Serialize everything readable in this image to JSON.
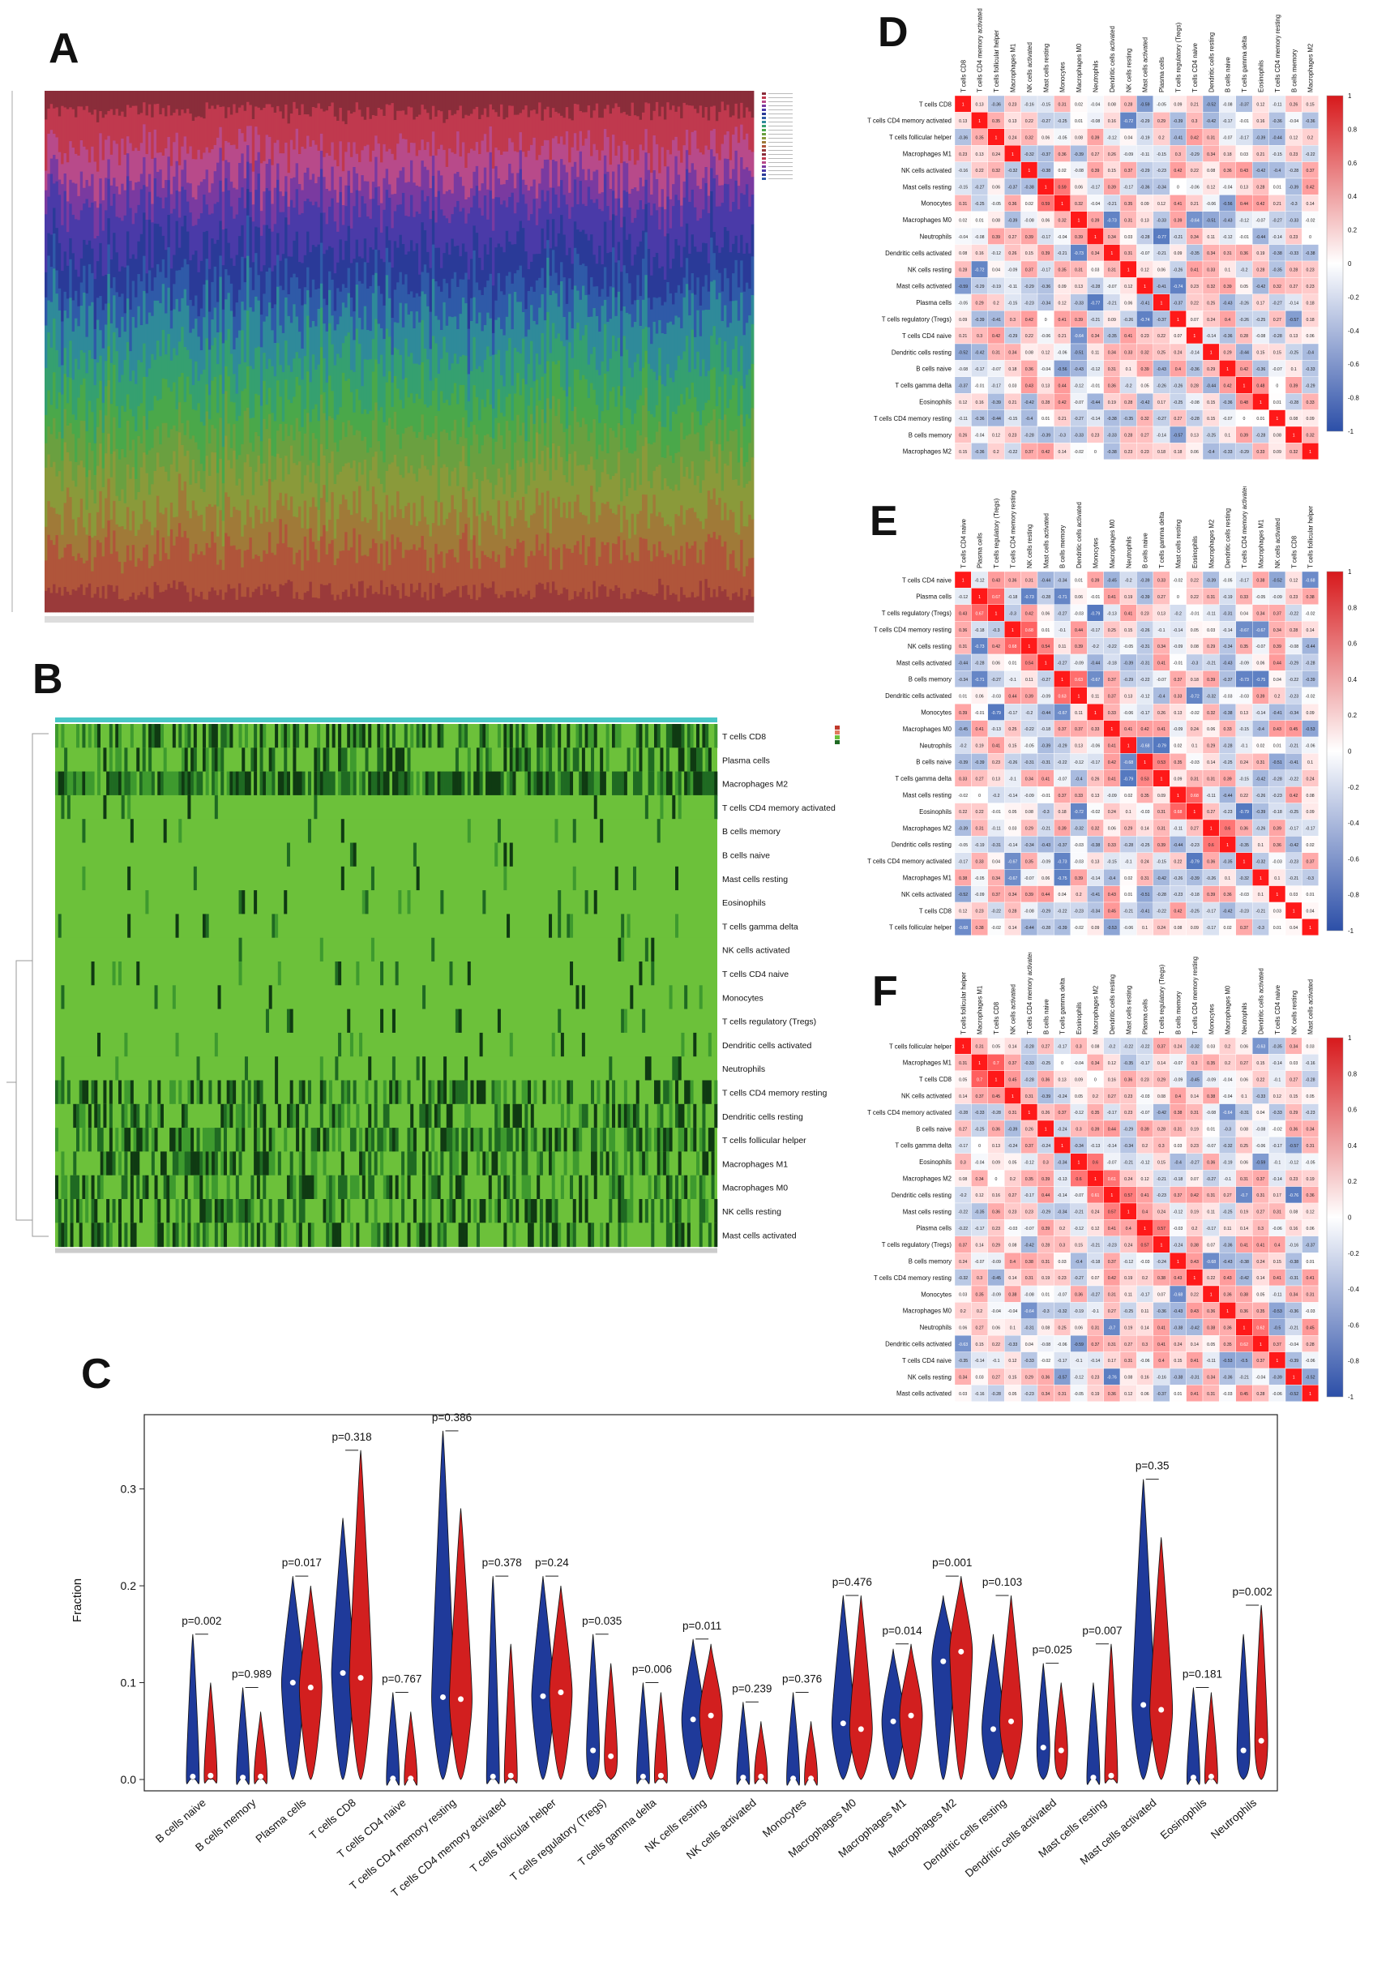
{
  "panel_letters": {
    "a": "A",
    "b": "B",
    "c": "C",
    "d": "D",
    "e": "E",
    "f": "F"
  },
  "cell_types_B": [
    "T cells CD8",
    "Plasma cells",
    "Macrophages M2",
    "T cells CD4 memory activated",
    "B cells memory",
    "B cells naive",
    "Mast cells resting",
    "Eosinophils",
    "T cells gamma delta",
    "NK cells activated",
    "T cells CD4 naive",
    "Monocytes",
    "T cells regulatory (Tregs)",
    "Dendritic cells activated",
    "Neutrophils",
    "T cells CD4 memory resting",
    "Dendritic cells resting",
    "T cells follicular helper",
    "Macrophages M1",
    "Macrophages M0",
    "NK cells resting",
    "Mast cells activated"
  ],
  "order_D": [
    "T cells CD8",
    "T cells CD4 memory activated",
    "T cells follicular helper",
    "Macrophages M1",
    "NK cells activated",
    "Mast cells resting",
    "Monocytes",
    "Macrophages M0",
    "Neutrophils",
    "Dendritic cells activated",
    "NK cells resting",
    "Mast cells activated",
    "Plasma cells",
    "T cells regulatory (Tregs)",
    "T cells CD4 naive",
    "Dendritic cells resting",
    "B cells naive",
    "T cells gamma delta",
    "Eosinophils",
    "T cells CD4 memory resting",
    "B cells memory",
    "Macrophages M2"
  ],
  "order_E": [
    "T cells CD4 naive",
    "Plasma cells",
    "T cells regulatory (Tregs)",
    "T cells CD4 memory resting",
    "NK cells resting",
    "Mast cells activated",
    "B cells memory",
    "Dendritic cells activated",
    "Monocytes",
    "Macrophages M0",
    "Neutrophils",
    "B cells naive",
    "T cells gamma delta",
    "Mast cells resting",
    "Eosinophils",
    "Macrophages M2",
    "Dendritic cells resting",
    "T cells CD4 memory activated",
    "Macrophages M1",
    "NK cells activated",
    "T cells CD8",
    "T cells follicular helper"
  ],
  "order_F": [
    "T cells follicular helper",
    "Macrophages M1",
    "T cells CD8",
    "NK cells activated",
    "T cells CD4 memory activated",
    "B cells naive",
    "T cells gamma delta",
    "Eosinophils",
    "Macrophages M2",
    "Dendritic cells resting",
    "Mast cells resting",
    "Plasma cells",
    "T cells regulatory (Tregs)",
    "B cells memory",
    "T cells CD4 memory resting",
    "Monocytes",
    "Macrophages M0",
    "Neutrophils",
    "Dendritic cells activated",
    "T cells CD4 naive",
    "NK cells resting",
    "Mast cells activated"
  ],
  "colorbar_ticks": [
    "1",
    "0.8",
    "0.6",
    "0.4",
    "0.2",
    "0",
    "-0.2",
    "-0.4",
    "-0.6",
    "-0.8",
    "-1"
  ],
  "colors": {
    "pos": "#d7191c",
    "neg": "#2c4fa8",
    "violin_a": "#1f3a9a",
    "violin_b": "#d21f1f"
  },
  "chart_data": {
    "type": "violin",
    "ylabel": "Fraction",
    "ylim": [
      0,
      0.37
    ],
    "yticks": [
      "0.0",
      "0.1",
      "0.2",
      "0.3"
    ],
    "categories": [
      "B cells naive",
      "B cells memory",
      "Plasma cells",
      "T cells CD8",
      "T cells CD4 naive",
      "T cells CD4 memory resting",
      "T cells CD4 memory activated",
      "T cells follicular helper",
      "T cells regulatory (Tregs)",
      "T cells gamma delta",
      "NK cells resting",
      "NK cells activated",
      "Monocytes",
      "Macrophages M0",
      "Macrophages M1",
      "Macrophages M2",
      "Dendritic cells resting",
      "Dendritic cells activated",
      "Mast cells resting",
      "Mast cells activated",
      "Eosinophils",
      "Neutrophils"
    ],
    "pvalues": [
      "p=0.002",
      "p=0.989",
      "p=0.017",
      "p=0.318",
      "p=0.767",
      "p=0.386",
      "p=0.378",
      "p=0.24",
      "p=0.035",
      "p=0.006",
      "p=0.011",
      "p=0.239",
      "p=0.376",
      "p=0.476",
      "p=0.014",
      "p=0.001",
      "p=0.103",
      "p=0.025",
      "p=0.007",
      "p=0.35",
      "p=0.181",
      "p=0.002"
    ],
    "series": [
      {
        "medians": [
          0.003,
          0.002,
          0.1,
          0.11,
          0.001,
          0.085,
          0.003,
          0.086,
          0.03,
          0.003,
          0.062,
          0.002,
          0.001,
          0.058,
          0.06,
          0.122,
          0.052,
          0.033,
          0.002,
          0.077,
          0.002,
          0.03
        ],
        "max": [
          0.15,
          0.095,
          0.21,
          0.27,
          0.09,
          0.36,
          0.21,
          0.21,
          0.15,
          0.1,
          0.145,
          0.08,
          0.09,
          0.19,
          0.135,
          0.19,
          0.15,
          0.12,
          0.1,
          0.31,
          0.095,
          0.15
        ]
      },
      {
        "medians": [
          0.004,
          0.003,
          0.095,
          0.105,
          0.001,
          0.083,
          0.004,
          0.09,
          0.024,
          0.004,
          0.066,
          0.003,
          0.001,
          0.052,
          0.066,
          0.132,
          0.06,
          0.03,
          0.004,
          0.072,
          0.003,
          0.04
        ],
        "max": [
          0.1,
          0.07,
          0.2,
          0.34,
          0.07,
          0.28,
          0.14,
          0.2,
          0.12,
          0.09,
          0.14,
          0.06,
          0.06,
          0.19,
          0.14,
          0.21,
          0.19,
          0.1,
          0.14,
          0.25,
          0.09,
          0.18
        ]
      }
    ]
  }
}
